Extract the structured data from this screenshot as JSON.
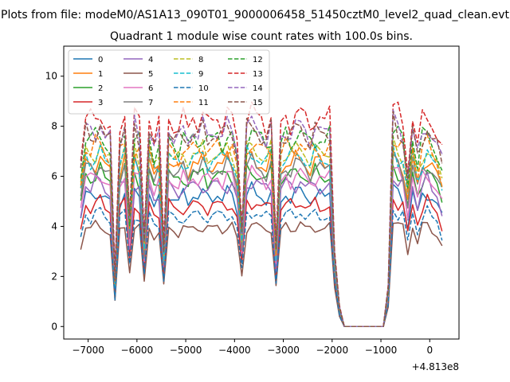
{
  "chart_data": {
    "type": "line",
    "suptitle": "Plots from file: modeM0/AS1A13_090T01_9000006458_51450cztM0_level2_quad_clean.evt",
    "title": "Quadrant 1 module wise count rates with 100.0s bins.",
    "xlabel": "",
    "ylabel": "",
    "x_offset_label": "+4.813e8",
    "xlim": [
      -7500,
      600
    ],
    "ylim": [
      -0.5,
      11.2
    ],
    "xticks": [
      -7000,
      -6000,
      -5000,
      -4000,
      -3000,
      -2000,
      -1000,
      0
    ],
    "xtick_labels": [
      "−7000",
      "−6000",
      "−5000",
      "−4000",
      "−3000",
      "−2000",
      "−1000",
      "0"
    ],
    "yticks": [
      0,
      2,
      4,
      6,
      8,
      10
    ],
    "ytick_labels": [
      "0",
      "2",
      "4",
      "6",
      "8",
      "10"
    ],
    "grid": false,
    "legend_position": "top-left",
    "legend_columns": 4,
    "bin_seconds": 100.0,
    "x": [
      -7150,
      -7050,
      -6950,
      -6850,
      -6750,
      -6650,
      -6550,
      -6450,
      -6350,
      -6250,
      -6150,
      -6050,
      -5950,
      -5850,
      -5750,
      -5650,
      -5550,
      -5450,
      -5350,
      -5250,
      -5150,
      -5050,
      -4950,
      -4850,
      -4750,
      -4650,
      -4550,
      -4450,
      -4350,
      -4250,
      -4150,
      -4050,
      -3950,
      -3850,
      -3750,
      -3650,
      -3550,
      -3450,
      -3350,
      -3250,
      -3150,
      -3050,
      -2950,
      -2850,
      -2750,
      -2650,
      -2550,
      -2450,
      -2350,
      -2250,
      -2150,
      -2050,
      -1950,
      -1850,
      -1750,
      -1650,
      -1550,
      -1450,
      -1350,
      -1250,
      -1150,
      -1050,
      -950,
      -850,
      -750,
      -650,
      -550,
      -450,
      -350,
      -250,
      -150,
      -50,
      50,
      150,
      250
    ],
    "base_shape": [
      0.8,
      1.0,
      0.97,
      1.0,
      1.02,
      0.96,
      0.94,
      0.25,
      0.95,
      1.02,
      0.55,
      1.0,
      0.96,
      0.45,
      1.0,
      0.9,
      0.94,
      0.4,
      1.0,
      0.96,
      0.94,
      0.98,
      0.95,
      1.0,
      0.98,
      1.0,
      0.96,
      0.98,
      1.0,
      0.97,
      1.0,
      0.99,
      0.88,
      0.5,
      1.0,
      1.02,
      1.0,
      0.98,
      0.96,
      1.0,
      0.4,
      0.95,
      1.0,
      0.98,
      1.0,
      1.02,
      0.98,
      0.96,
      1.0,
      0.98,
      0.97,
      1.0,
      0.38,
      0.1,
      0.0,
      0.0,
      0.0,
      0.0,
      0.0,
      0.0,
      0.0,
      0.0,
      0.0,
      0.2,
      1.05,
      1.0,
      0.98,
      0.75,
      1.0,
      0.85,
      0.98,
      1.02,
      0.96,
      0.92,
      0.82
    ],
    "series": [
      {
        "name": "0",
        "level": 5.3,
        "color": "#1f77b4",
        "dash": "solid",
        "phase": 0
      },
      {
        "name": "1",
        "level": 6.6,
        "color": "#ff7f0e",
        "dash": "solid",
        "phase": 1
      },
      {
        "name": "2",
        "level": 6.1,
        "color": "#2ca02c",
        "dash": "solid",
        "phase": 2
      },
      {
        "name": "3",
        "level": 4.9,
        "color": "#d62728",
        "dash": "solid",
        "phase": 3
      },
      {
        "name": "4",
        "level": 5.7,
        "color": "#9467bd",
        "dash": "solid",
        "phase": 4
      },
      {
        "name": "5",
        "level": 4.0,
        "color": "#8c564b",
        "dash": "solid",
        "phase": 5
      },
      {
        "name": "6",
        "level": 6.0,
        "color": "#e377c2",
        "dash": "solid",
        "phase": 6
      },
      {
        "name": "7",
        "level": 6.4,
        "color": "#7f7f7f",
        "dash": "solid",
        "phase": 7
      },
      {
        "name": "8",
        "level": 7.0,
        "color": "#bcbd22",
        "dash": "dashed",
        "phase": 8
      },
      {
        "name": "9",
        "level": 6.8,
        "color": "#17becf",
        "dash": "dashed",
        "phase": 9
      },
      {
        "name": "10",
        "level": 4.5,
        "color": "#1f77b4",
        "dash": "dashed",
        "phase": 10
      },
      {
        "name": "11",
        "level": 7.2,
        "color": "#ff7f0e",
        "dash": "dashed",
        "phase": 11
      },
      {
        "name": "12",
        "level": 7.6,
        "color": "#2ca02c",
        "dash": "dashed",
        "phase": 12
      },
      {
        "name": "13",
        "level": 8.4,
        "color": "#d62728",
        "dash": "dashed",
        "phase": 13
      },
      {
        "name": "14",
        "level": 7.9,
        "color": "#9467bd",
        "dash": "dashed",
        "phase": 14
      },
      {
        "name": "15",
        "level": 7.8,
        "color": "#8c564b",
        "dash": "dashed",
        "phase": 15
      }
    ]
  }
}
